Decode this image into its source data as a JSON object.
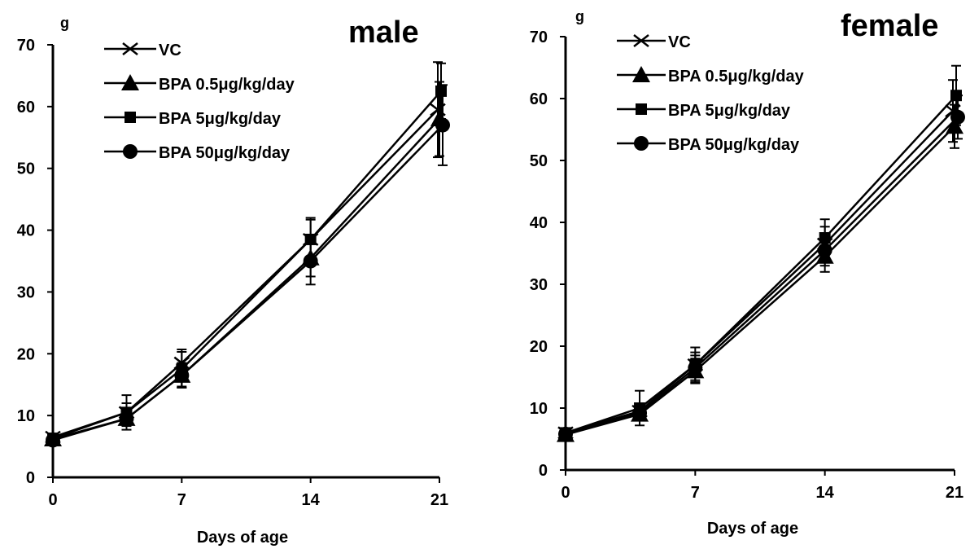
{
  "chart_data": [
    {
      "type": "line",
      "title": "male",
      "xlabel": "Days of age",
      "ylabel": "g",
      "x_ticks": [
        0,
        7,
        14,
        21
      ],
      "y_ticks": [
        0,
        10,
        20,
        30,
        40,
        50,
        60,
        70
      ],
      "ylim": [
        0,
        70
      ],
      "grid": false,
      "legend_position": "top-left",
      "x": [
        0,
        4,
        7,
        14,
        21
      ],
      "series": [
        {
          "name": "VC",
          "marker": "x",
          "values": [
            6.5,
            10.5,
            18.5,
            38.5,
            59.5
          ],
          "error": [
            0.6,
            1.5,
            2.2,
            3.2,
            7.7
          ]
        },
        {
          "name": "BPA 0.5μg/kg/day",
          "marker": "triangle",
          "values": [
            6.2,
            9.5,
            16.5,
            35.5,
            58.0
          ],
          "error": [
            0.5,
            1.2,
            2.0,
            3.0,
            6.0
          ]
        },
        {
          "name": "BPA 5μg/kg/day",
          "marker": "square",
          "values": [
            6.3,
            10.5,
            17.5,
            38.5,
            62.5
          ],
          "error": [
            0.6,
            2.8,
            2.8,
            3.5,
            4.5
          ]
        },
        {
          "name": "BPA 50μg/kg/day",
          "marker": "circle",
          "values": [
            6.0,
            9.5,
            16.5,
            35.0,
            57.0
          ],
          "error": [
            0.5,
            1.2,
            2.0,
            3.8,
            6.5
          ]
        }
      ]
    },
    {
      "type": "line",
      "title": "female",
      "xlabel": "Days of age",
      "ylabel": "g",
      "x_ticks": [
        0,
        7,
        14,
        21
      ],
      "y_ticks": [
        0,
        10,
        20,
        30,
        40,
        50,
        60,
        70
      ],
      "ylim": [
        0,
        70
      ],
      "grid": false,
      "legend_position": "top-left",
      "x": [
        0,
        4,
        7,
        14,
        21
      ],
      "series": [
        {
          "name": "VC",
          "marker": "x",
          "values": [
            6.0,
            9.5,
            17.0,
            36.5,
            58.0
          ],
          "error": [
            0.5,
            1.2,
            2.0,
            2.8,
            5.0
          ]
        },
        {
          "name": "BPA 0.5μg/kg/day",
          "marker": "triangle",
          "values": [
            5.7,
            9.0,
            16.0,
            34.5,
            55.5
          ],
          "error": [
            0.5,
            1.0,
            2.0,
            2.5,
            3.5
          ]
        },
        {
          "name": "BPA 5μg/kg/day",
          "marker": "square",
          "values": [
            6.0,
            10.0,
            17.0,
            37.5,
            60.5
          ],
          "error": [
            0.5,
            2.8,
            2.8,
            3.0,
            4.8
          ]
        },
        {
          "name": "BPA 50μg/kg/day",
          "marker": "circle",
          "values": [
            5.8,
            9.2,
            16.5,
            35.5,
            57.0
          ],
          "error": [
            0.5,
            1.0,
            2.0,
            2.5,
            3.5
          ]
        }
      ]
    }
  ]
}
